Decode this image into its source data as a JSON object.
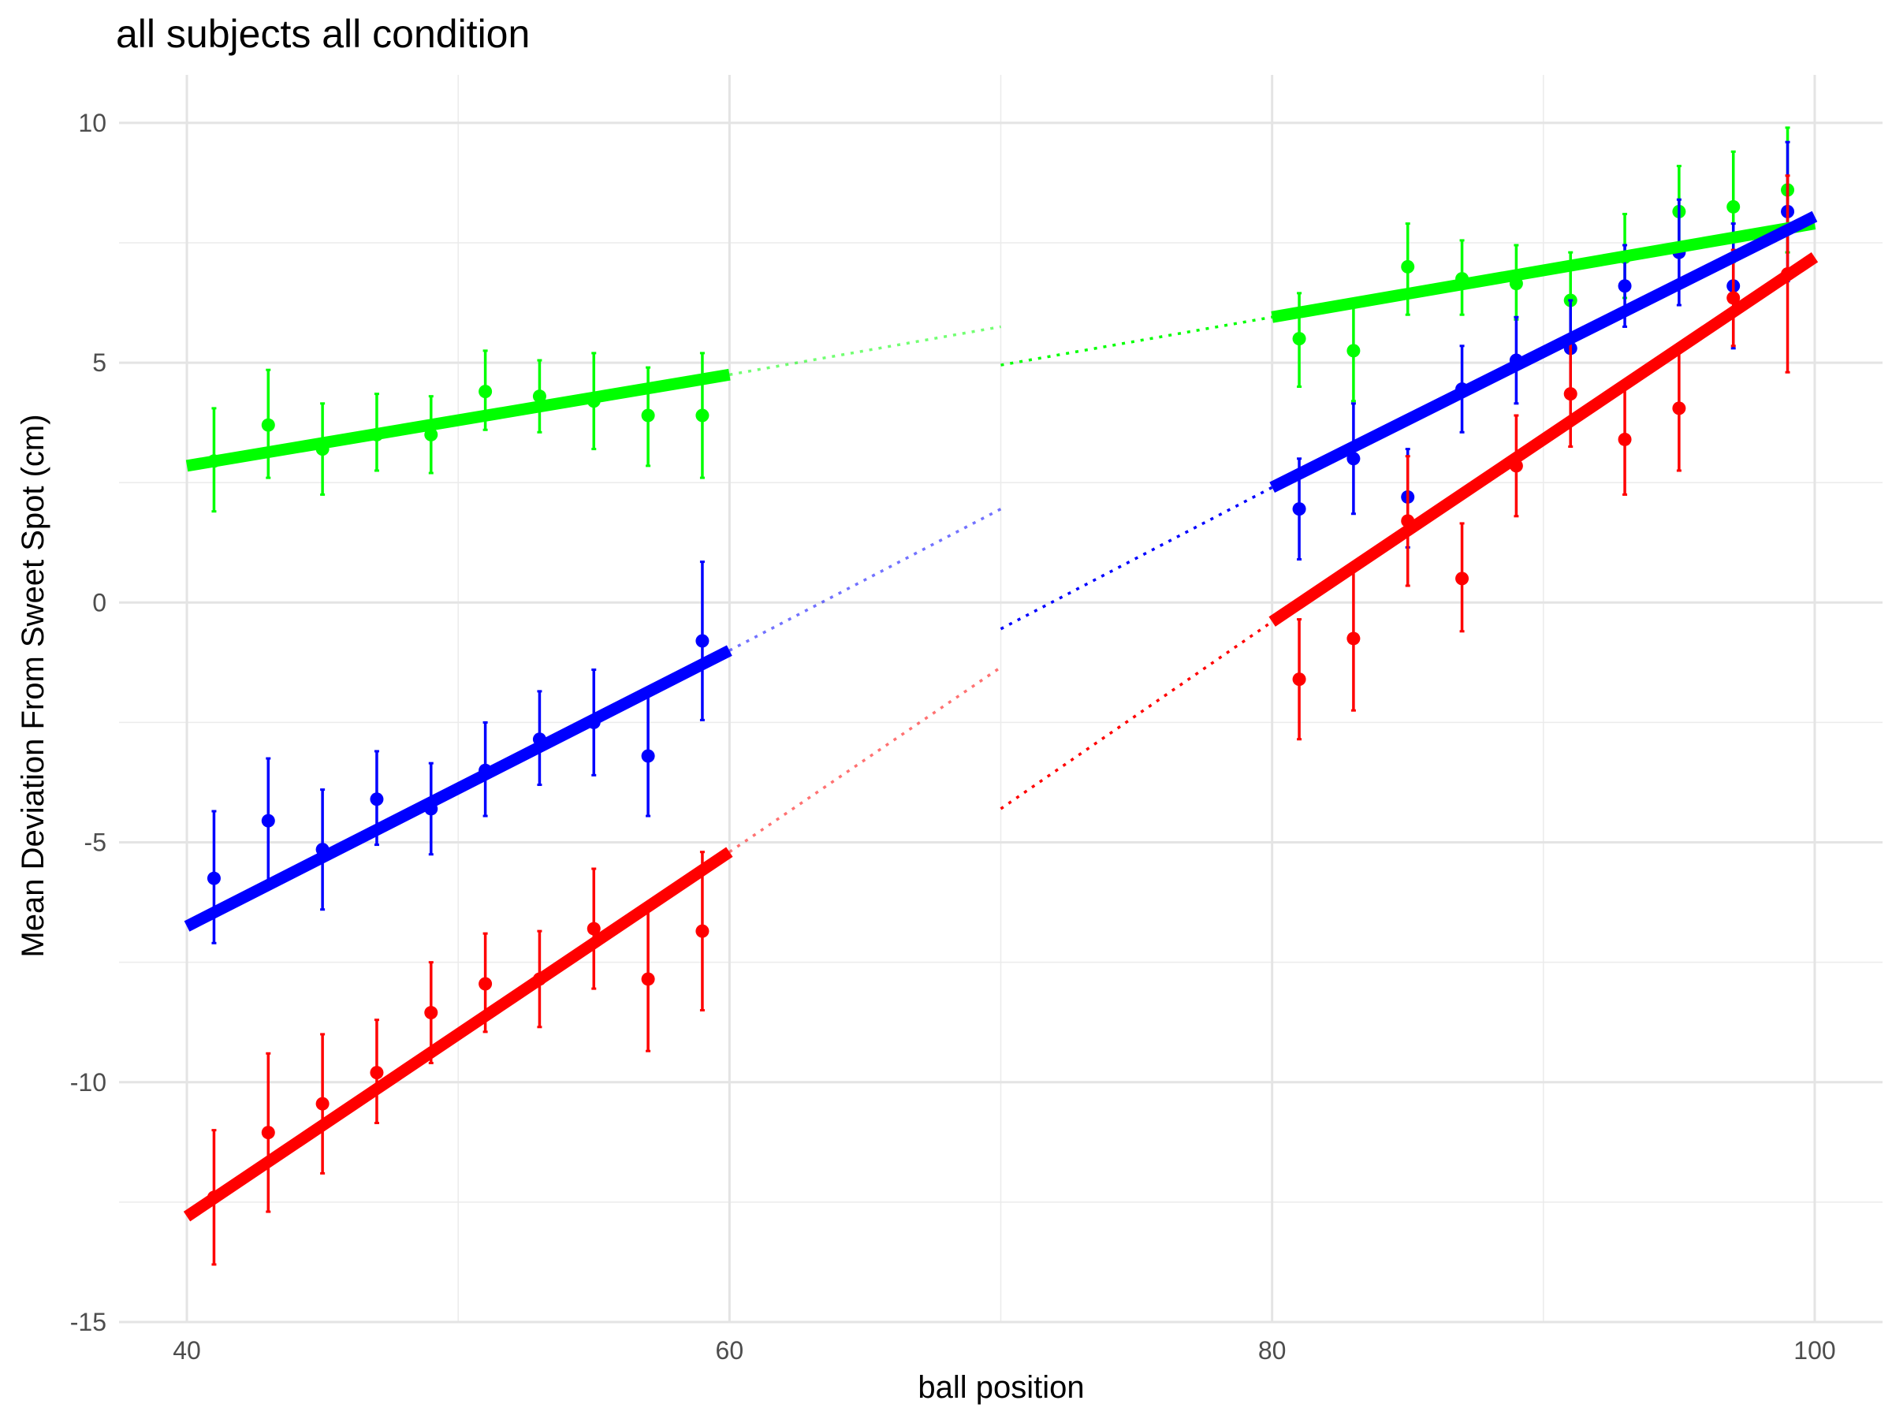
{
  "chart_data": {
    "type": "scatter",
    "title": "all subjects all condition",
    "xlabel": "ball position",
    "ylabel": "Mean Deviation From Sweet Spot (cm)",
    "xlim": [
      37.5,
      102.5
    ],
    "ylim": [
      -15,
      11
    ],
    "x_ticks": [
      40,
      60,
      80,
      100
    ],
    "x_tick_labels": [
      "40",
      "60",
      "80",
      "100"
    ],
    "y_ticks": [
      -15,
      -10,
      -5,
      0,
      5,
      10
    ],
    "y_tick_labels": [
      "-15",
      "-10",
      "-5",
      "0",
      "5",
      "10"
    ],
    "grid": true,
    "legend": "none",
    "series": [
      {
        "color": "#00ff00",
        "points": [
          {
            "x": 41,
            "y": 2.95,
            "lo": 1.9,
            "hi": 4.05
          },
          {
            "x": 43,
            "y": 3.7,
            "lo": 2.6,
            "hi": 4.85
          },
          {
            "x": 45,
            "y": 3.2,
            "lo": 2.25,
            "hi": 4.15
          },
          {
            "x": 47,
            "y": 3.5,
            "lo": 2.75,
            "hi": 4.35
          },
          {
            "x": 49,
            "y": 3.5,
            "lo": 2.7,
            "hi": 4.3
          },
          {
            "x": 51,
            "y": 4.4,
            "lo": 3.6,
            "hi": 5.25
          },
          {
            "x": 53,
            "y": 4.3,
            "lo": 3.55,
            "hi": 5.05
          },
          {
            "x": 55,
            "y": 4.2,
            "lo": 3.2,
            "hi": 5.2
          },
          {
            "x": 57,
            "y": 3.9,
            "lo": 2.85,
            "hi": 4.9
          },
          {
            "x": 59,
            "y": 3.9,
            "lo": 2.6,
            "hi": 5.2
          },
          {
            "x": 81,
            "y": 5.5,
            "lo": 4.5,
            "hi": 6.45
          },
          {
            "x": 83,
            "y": 5.25,
            "lo": 4.2,
            "hi": 6.3
          },
          {
            "x": 85,
            "y": 7.0,
            "lo": 6.0,
            "hi": 7.9
          },
          {
            "x": 87,
            "y": 6.75,
            "lo": 6.0,
            "hi": 7.55
          },
          {
            "x": 89,
            "y": 6.65,
            "lo": 5.9,
            "hi": 7.45
          },
          {
            "x": 91,
            "y": 6.3,
            "lo": 5.3,
            "hi": 7.3
          },
          {
            "x": 93,
            "y": 7.2,
            "lo": 6.35,
            "hi": 8.1
          },
          {
            "x": 95,
            "y": 8.15,
            "lo": 7.2,
            "hi": 9.1
          },
          {
            "x": 97,
            "y": 8.25,
            "lo": 7.1,
            "hi": 9.4
          },
          {
            "x": 99,
            "y": 8.6,
            "lo": 7.3,
            "hi": 9.9
          }
        ],
        "fit_left": {
          "x": [
            40,
            60
          ],
          "y": [
            2.85,
            4.75
          ]
        },
        "fit_right": {
          "x": [
            80,
            100
          ],
          "y": [
            5.95,
            7.9
          ]
        },
        "extend_left": {
          "x": [
            60,
            70
          ],
          "y": [
            4.75,
            5.75
          ]
        },
        "extend_right": {
          "x": [
            70,
            80
          ],
          "y": [
            4.95,
            5.95
          ]
        }
      },
      {
        "color": "#0000ff",
        "points": [
          {
            "x": 41,
            "y": -5.75,
            "lo": -7.1,
            "hi": -4.35
          },
          {
            "x": 43,
            "y": -4.55,
            "lo": -5.8,
            "hi": -3.25
          },
          {
            "x": 45,
            "y": -5.15,
            "lo": -6.4,
            "hi": -3.9
          },
          {
            "x": 47,
            "y": -4.1,
            "lo": -5.05,
            "hi": -3.1
          },
          {
            "x": 49,
            "y": -4.3,
            "lo": -5.25,
            "hi": -3.35
          },
          {
            "x": 51,
            "y": -3.5,
            "lo": -4.45,
            "hi": -2.5
          },
          {
            "x": 53,
            "y": -2.85,
            "lo": -3.8,
            "hi": -1.85
          },
          {
            "x": 55,
            "y": -2.5,
            "lo": -3.6,
            "hi": -1.4
          },
          {
            "x": 57,
            "y": -3.2,
            "lo": -4.45,
            "hi": -1.95
          },
          {
            "x": 59,
            "y": -0.8,
            "lo": -2.45,
            "hi": 0.85
          },
          {
            "x": 81,
            "y": 1.95,
            "lo": 0.9,
            "hi": 3.0
          },
          {
            "x": 83,
            "y": 3.0,
            "lo": 1.85,
            "hi": 4.15
          },
          {
            "x": 85,
            "y": 2.2,
            "lo": 1.15,
            "hi": 3.2
          },
          {
            "x": 87,
            "y": 4.45,
            "lo": 3.55,
            "hi": 5.35
          },
          {
            "x": 89,
            "y": 5.05,
            "lo": 4.15,
            "hi": 5.95
          },
          {
            "x": 91,
            "y": 5.3,
            "lo": 4.25,
            "hi": 6.3
          },
          {
            "x": 93,
            "y": 6.6,
            "lo": 5.75,
            "hi": 7.45
          },
          {
            "x": 95,
            "y": 7.3,
            "lo": 6.2,
            "hi": 8.4
          },
          {
            "x": 97,
            "y": 6.6,
            "lo": 5.3,
            "hi": 7.9
          },
          {
            "x": 99,
            "y": 8.15,
            "lo": 6.7,
            "hi": 9.6
          }
        ],
        "fit_left": {
          "x": [
            40,
            60
          ],
          "y": [
            -6.75,
            -1.0
          ]
        },
        "fit_right": {
          "x": [
            80,
            100
          ],
          "y": [
            2.4,
            8.05
          ]
        },
        "extend_left": {
          "x": [
            60,
            70
          ],
          "y": [
            -1.0,
            1.95
          ]
        },
        "extend_right": {
          "x": [
            70,
            80
          ],
          "y": [
            -0.55,
            2.4
          ]
        }
      },
      {
        "color": "#ff0000",
        "points": [
          {
            "x": 41,
            "y": -12.4,
            "lo": -13.8,
            "hi": -11.0
          },
          {
            "x": 43,
            "y": -11.05,
            "lo": -12.7,
            "hi": -9.4
          },
          {
            "x": 45,
            "y": -10.45,
            "lo": -11.9,
            "hi": -9.0
          },
          {
            "x": 47,
            "y": -9.8,
            "lo": -10.85,
            "hi": -8.7
          },
          {
            "x": 49,
            "y": -8.55,
            "lo": -9.6,
            "hi": -7.5
          },
          {
            "x": 51,
            "y": -7.95,
            "lo": -8.95,
            "hi": -6.9
          },
          {
            "x": 53,
            "y": -7.85,
            "lo": -8.85,
            "hi": -6.85
          },
          {
            "x": 55,
            "y": -6.8,
            "lo": -8.05,
            "hi": -5.55
          },
          {
            "x": 57,
            "y": -7.85,
            "lo": -9.35,
            "hi": -6.35
          },
          {
            "x": 59,
            "y": -6.85,
            "lo": -8.5,
            "hi": -5.2
          },
          {
            "x": 81,
            "y": -1.6,
            "lo": -2.85,
            "hi": -0.35
          },
          {
            "x": 83,
            "y": -0.75,
            "lo": -2.25,
            "hi": 0.75
          },
          {
            "x": 85,
            "y": 1.7,
            "lo": 0.35,
            "hi": 3.05
          },
          {
            "x": 87,
            "y": 0.5,
            "lo": -0.6,
            "hi": 1.65
          },
          {
            "x": 89,
            "y": 2.85,
            "lo": 1.8,
            "hi": 3.9
          },
          {
            "x": 91,
            "y": 4.35,
            "lo": 3.25,
            "hi": 5.45
          },
          {
            "x": 93,
            "y": 3.4,
            "lo": 2.25,
            "hi": 4.55
          },
          {
            "x": 95,
            "y": 4.05,
            "lo": 2.75,
            "hi": 5.35
          },
          {
            "x": 97,
            "y": 6.35,
            "lo": 5.35,
            "hi": 7.35
          },
          {
            "x": 99,
            "y": 6.85,
            "lo": 4.8,
            "hi": 8.9
          }
        ],
        "fit_left": {
          "x": [
            40,
            60
          ],
          "y": [
            -12.8,
            -5.2
          ]
        },
        "fit_right": {
          "x": [
            80,
            100
          ],
          "y": [
            -0.4,
            7.2
          ]
        },
        "extend_left": {
          "x": [
            60,
            70
          ],
          "y": [
            -5.2,
            -1.35
          ]
        },
        "extend_right": {
          "x": [
            70,
            80
          ],
          "y": [
            -4.3,
            -0.4
          ]
        }
      }
    ]
  }
}
